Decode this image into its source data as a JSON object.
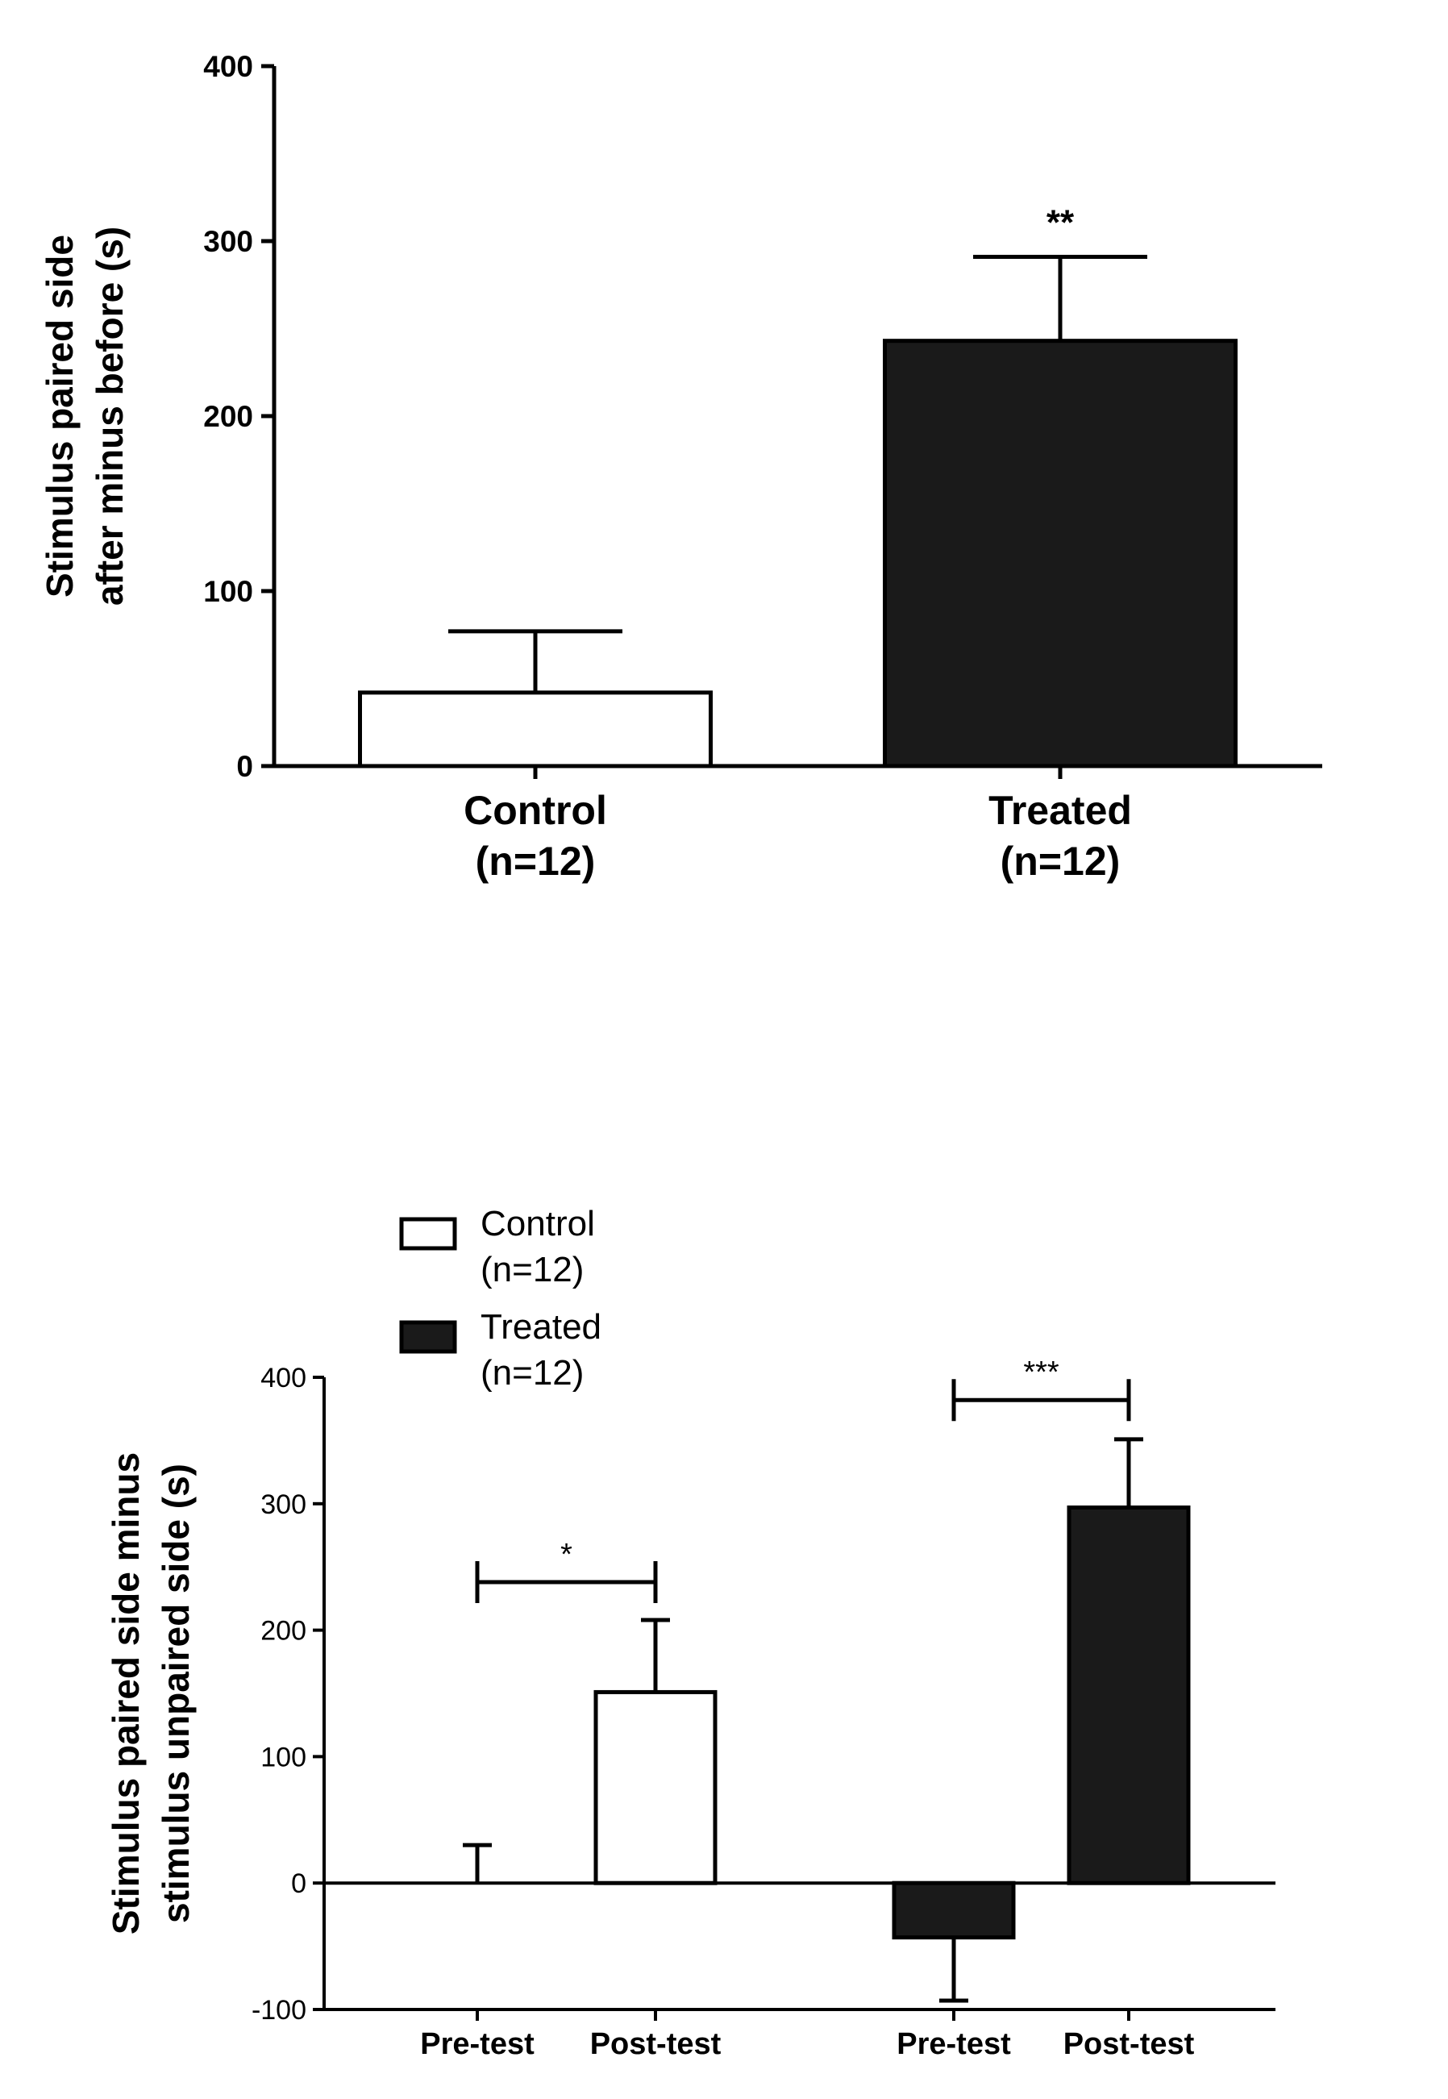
{
  "colors": {
    "ink": "#000000",
    "fill_control": "#ffffff",
    "fill_treated": "#1a1a1a"
  },
  "chart_data": [
    {
      "type": "bar",
      "ylabel_lines": [
        "Stimulus paired side",
        "after minus before (s)"
      ],
      "ylim": [
        0,
        400
      ],
      "yticks": [
        0,
        100,
        200,
        300,
        400
      ],
      "categories": [
        {
          "lines": [
            "Control",
            "(n=12)"
          ],
          "value": 42,
          "error": 35,
          "fill": "open"
        },
        {
          "lines": [
            "Treated",
            "(n=12)"
          ],
          "value": 243,
          "error": 48,
          "fill": "filled"
        }
      ],
      "annotations": [
        {
          "text": "**",
          "category_index": 1
        }
      ]
    },
    {
      "type": "bar",
      "ylabel_lines": [
        "Stimulus paired side minus",
        "stimulus unpaired side (s)"
      ],
      "ylim": [
        -100,
        400
      ],
      "yticks": [
        -100,
        0,
        100,
        200,
        300,
        400
      ],
      "legend": [
        {
          "lines": [
            "Control",
            "(n=12)"
          ],
          "fill": "open"
        },
        {
          "lines": [
            "Treated",
            " (n=12)"
          ],
          "fill": "filled"
        }
      ],
      "categories": [
        {
          "label": "Pre-test",
          "group": "Control",
          "value": 0,
          "error": 30,
          "fill": "open"
        },
        {
          "label": "Post-test",
          "group": "Control",
          "value": 151,
          "error": 57,
          "fill": "open"
        },
        {
          "label": "Pre-test",
          "group": "Treated",
          "value": -43,
          "error": 50,
          "fill": "filled"
        },
        {
          "label": "Post-test",
          "group": "Treated",
          "value": 297,
          "error": 54,
          "fill": "filled"
        }
      ],
      "brackets": [
        {
          "text": "*",
          "from": 0,
          "to": 1,
          "y": 238
        },
        {
          "text": "***",
          "from": 2,
          "to": 3,
          "y": 382
        }
      ]
    }
  ]
}
